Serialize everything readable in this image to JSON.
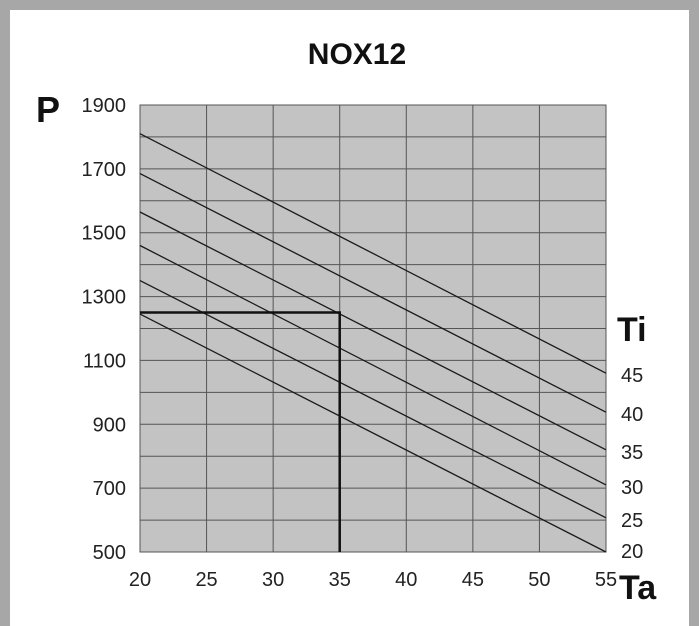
{
  "chart_data": {
    "type": "line",
    "title": "NOX12",
    "ylabel": "P",
    "xlabel": "Ta",
    "series_label": "Ti",
    "xlim": [
      20,
      55
    ],
    "ylim": [
      500,
      1900
    ],
    "x_ticks": [
      "20",
      "25",
      "30",
      "35",
      "40",
      "45",
      "50",
      "55"
    ],
    "y_ticks": [
      "1900",
      "1700",
      "1500",
      "1300",
      "1100",
      "900",
      "700",
      "500"
    ],
    "grid": true,
    "series": [
      {
        "name": "45",
        "points": [
          [
            20,
            1810
          ],
          [
            55,
            1060
          ]
        ]
      },
      {
        "name": "40",
        "points": [
          [
            20,
            1685
          ],
          [
            55,
            938
          ]
        ]
      },
      {
        "name": "35",
        "points": [
          [
            20,
            1565
          ],
          [
            55,
            820
          ]
        ]
      },
      {
        "name": "30",
        "points": [
          [
            20,
            1460
          ],
          [
            55,
            710
          ]
        ]
      },
      {
        "name": "25",
        "points": [
          [
            20,
            1350
          ],
          [
            55,
            607
          ]
        ]
      },
      {
        "name": "20",
        "points": [
          [
            20,
            1245
          ],
          [
            55,
            500
          ]
        ]
      }
    ],
    "marker": {
      "x": 35,
      "y": 1250
    },
    "colors": {
      "plot_bg": "#c3c3c3",
      "grid": "#555555",
      "line": "#1a1a1a",
      "frame": "#a7a7a7"
    }
  }
}
